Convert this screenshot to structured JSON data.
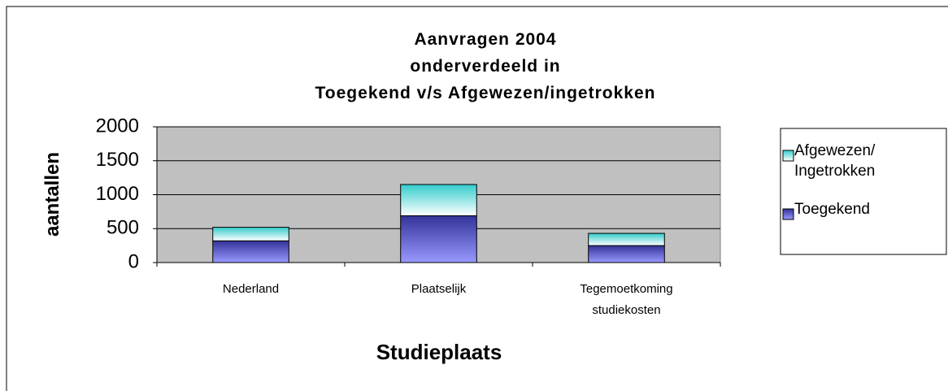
{
  "chart_data": {
    "type": "stacked-bar",
    "title": "Aanvragen 2004\nonderverdeeld in\nToegekend  v/s Afgewezen/ingetrokken",
    "x_label": "Studieplaats",
    "y_label": "aantallen",
    "categories": [
      "Nederland",
      "Plaatselijk",
      "Tegemoetkoming\nstudiekosten"
    ],
    "series": [
      {
        "name": "Toegekend",
        "color": "#333399",
        "values": [
          320,
          690,
          250
        ]
      },
      {
        "name": "Afgewezen/\nIngetrokken",
        "color": "#33cccc",
        "values": [
          200,
          460,
          180
        ]
      }
    ],
    "ylim": [
      0,
      2000
    ],
    "yticks": [
      0,
      500,
      1000,
      1500,
      2000
    ],
    "grid": true,
    "legend": "right"
  }
}
